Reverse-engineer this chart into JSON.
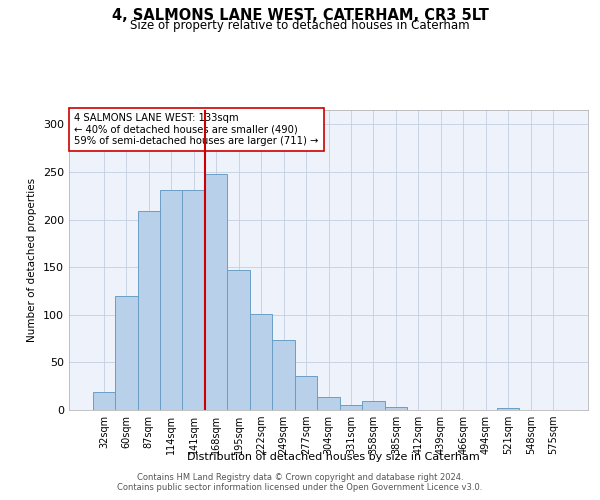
{
  "title": "4, SALMONS LANE WEST, CATERHAM, CR3 5LT",
  "subtitle": "Size of property relative to detached houses in Caterham",
  "xlabel": "Distribution of detached houses by size in Caterham",
  "ylabel": "Number of detached properties",
  "bar_labels": [
    "32sqm",
    "60sqm",
    "87sqm",
    "114sqm",
    "141sqm",
    "168sqm",
    "195sqm",
    "222sqm",
    "249sqm",
    "277sqm",
    "304sqm",
    "331sqm",
    "358sqm",
    "385sqm",
    "412sqm",
    "439sqm",
    "466sqm",
    "494sqm",
    "521sqm",
    "548sqm",
    "575sqm"
  ],
  "bar_values": [
    19,
    120,
    209,
    231,
    231,
    248,
    147,
    101,
    74,
    36,
    14,
    5,
    9,
    3,
    0,
    0,
    0,
    0,
    2,
    0,
    0
  ],
  "bar_color": "#b8d0ea",
  "bar_edge_color": "#6a9ec5",
  "vline_x": 4.5,
  "marker_label": "4 SALMONS LANE WEST: 133sqm",
  "annotation_line1": "← 40% of detached houses are smaller (490)",
  "annotation_line2": "59% of semi-detached houses are larger (711) →",
  "vline_color": "#cc0000",
  "bg_color": "#eef2fb",
  "grid_color": "#c5cfe0",
  "footer1": "Contains HM Land Registry data © Crown copyright and database right 2024.",
  "footer2": "Contains public sector information licensed under the Open Government Licence v3.0.",
  "ylim_max": 315,
  "yticks": [
    0,
    50,
    100,
    150,
    200,
    250,
    300
  ]
}
